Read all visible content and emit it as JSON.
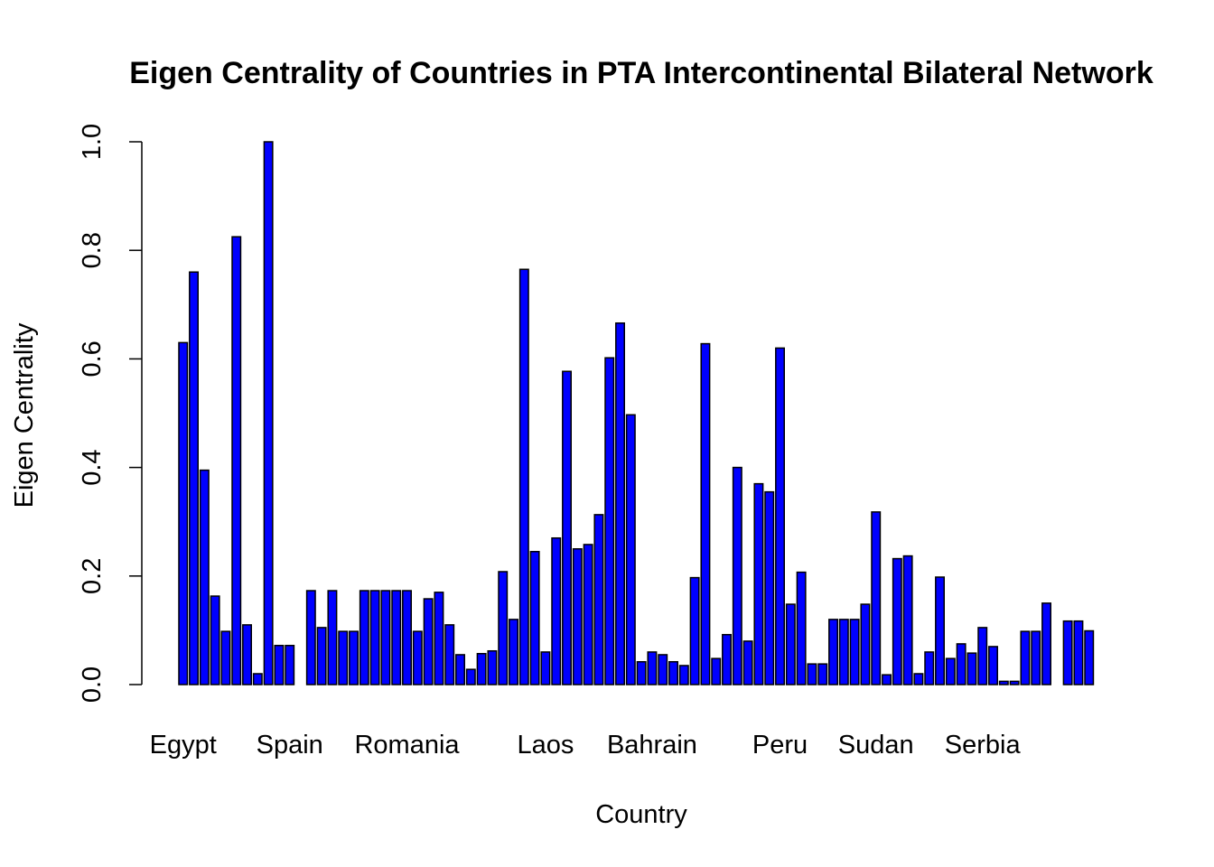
{
  "chart_data": {
    "type": "bar",
    "title": "Eigen Centrality of Countries in PTA Intercontinental Bilateral Network",
    "xlabel": "Country",
    "ylabel": "Eigen Centrality",
    "ylim": [
      0,
      1.0
    ],
    "yticks": [
      "0.0",
      "0.2",
      "0.4",
      "0.6",
      "0.8",
      "1.0"
    ],
    "bar_color": "#0000ff",
    "bar_border_color": "#000000",
    "x_tick_labels": [
      {
        "label": "Egypt",
        "index": 0
      },
      {
        "label": "Spain",
        "index": 10
      },
      {
        "label": "Romania",
        "index": 21
      },
      {
        "label": "Laos",
        "index": 34
      },
      {
        "label": "Bahrain",
        "index": 44
      },
      {
        "label": "Peru",
        "index": 56
      },
      {
        "label": "Sudan",
        "index": 65
      },
      {
        "label": "Serbia",
        "index": 75
      }
    ],
    "values": [
      0.63,
      0.76,
      0.395,
      0.163,
      0.098,
      0.825,
      0.11,
      0.02,
      1.0,
      0.072,
      0.072,
      0.0,
      0.173,
      0.105,
      0.173,
      0.098,
      0.098,
      0.173,
      0.173,
      0.173,
      0.173,
      0.173,
      0.098,
      0.158,
      0.17,
      0.11,
      0.055,
      0.028,
      0.057,
      0.062,
      0.208,
      0.12,
      0.765,
      0.245,
      0.06,
      0.27,
      0.577,
      0.25,
      0.258,
      0.313,
      0.602,
      0.666,
      0.497,
      0.042,
      0.06,
      0.055,
      0.042,
      0.035,
      0.197,
      0.628,
      0.048,
      0.092,
      0.4,
      0.08,
      0.37,
      0.355,
      0.62,
      0.148,
      0.207,
      0.038,
      0.038,
      0.12,
      0.12,
      0.12,
      0.148,
      0.318,
      0.018,
      0.232,
      0.237,
      0.02,
      0.06,
      0.198,
      0.048,
      0.075,
      0.058,
      0.105,
      0.07,
      0.006,
      0.006,
      0.098,
      0.098,
      0.15,
      0.0,
      0.117,
      0.117,
      0.099
    ]
  }
}
